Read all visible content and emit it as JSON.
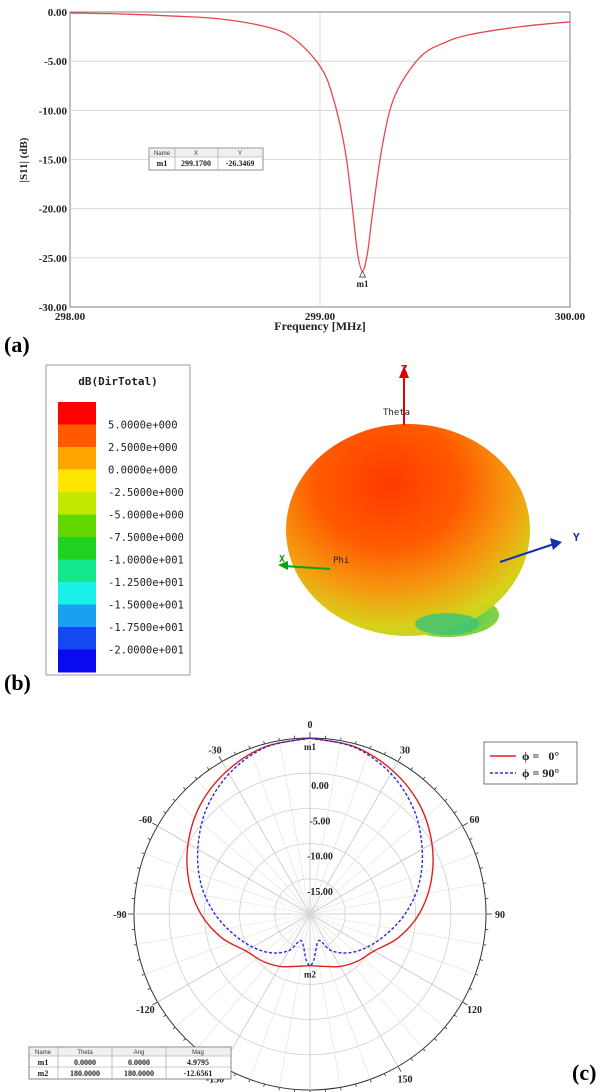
{
  "panel_labels": {
    "a": "(a)",
    "b": "(b)",
    "c": "(c)"
  },
  "chart_data": [
    {
      "type": "line",
      "panel": "a",
      "xlabel": "Frequency [MHz]",
      "ylabel": "|S11| (dB)",
      "xlim": [
        298.0,
        300.0
      ],
      "ylim": [
        -30.0,
        0.0
      ],
      "xticks": [
        "298.00",
        "299.00",
        "300.00"
      ],
      "yticks": [
        "0.00",
        "-5.00",
        "-10.00",
        "-15.00",
        "-20.00",
        "-25.00",
        "-30.00"
      ],
      "grid": true,
      "series": [
        {
          "color": "#e8474f",
          "x": [
            298.0,
            298.2,
            298.4,
            298.6,
            298.8,
            298.9,
            299.0,
            299.05,
            299.1,
            299.13,
            299.15,
            299.17,
            299.19,
            299.21,
            299.25,
            299.3,
            299.4,
            299.5,
            299.6,
            299.8,
            300.0
          ],
          "y": [
            -0.1,
            -0.2,
            -0.4,
            -0.7,
            -1.6,
            -2.8,
            -5.5,
            -8.5,
            -14.0,
            -20.0,
            -24.5,
            -26.35,
            -24.5,
            -20.5,
            -13.5,
            -8.5,
            -4.6,
            -3.1,
            -2.3,
            -1.5,
            -1.0
          ]
        }
      ],
      "marker": {
        "name": "m1",
        "x": 299.17,
        "y": -26.3469
      },
      "marker_table": {
        "headers": [
          "Name",
          "X",
          "Y"
        ],
        "rows": [
          [
            "m1",
            "299.1700",
            "-26.3469"
          ]
        ]
      }
    },
    {
      "type": "heatmap",
      "panel": "b",
      "legend_title": "dB(DirTotal)",
      "legend_levels": [
        "5.0000e+000",
        "2.5000e+000",
        "0.0000e+000",
        "-2.5000e+000",
        "-5.0000e+000",
        "-7.5000e+000",
        "-1.0000e+001",
        "-1.2500e+001",
        "-1.5000e+001",
        "-1.7500e+001",
        "-2.0000e+001"
      ],
      "legend_colors": [
        "#ff0000",
        "#ff5a00",
        "#ffa500",
        "#ffe600",
        "#c0e800",
        "#62d800",
        "#1fd21f",
        "#14e68c",
        "#19f0e6",
        "#1aa0f0",
        "#1448f0",
        "#0a0af0"
      ],
      "axis_labels": {
        "z": "Z",
        "y": "Y",
        "x": "X",
        "theta": "Theta",
        "phi": "Phi"
      }
    },
    {
      "type": "line",
      "panel": "c",
      "polar": true,
      "angle_labels": {
        "0": "0",
        "30": "30",
        "60": "60",
        "90": "90",
        "120": "120",
        "150": "150",
        "180": "-180",
        "-30": "-30",
        "-60": "-60",
        "-90": "-90",
        "-120": "-120",
        "-150": "-150"
      },
      "radial_labels": [
        "0.00",
        "-5.00",
        "-10.00",
        "-15.00"
      ],
      "rlim": [
        -20,
        5
      ],
      "series": [
        {
          "name": "ϕ =   0°",
          "color": "#e02020",
          "dash": false,
          "theta": [
            0,
            15,
            30,
            45,
            60,
            75,
            90,
            105,
            120,
            135,
            150,
            165,
            180
          ],
          "r_db": [
            4.98,
            4.6,
            3.5,
            2.0,
            0.0,
            -2.2,
            -4.5,
            -7.0,
            -9.5,
            -10.5,
            -11.4,
            -12.3,
            -12.66
          ]
        },
        {
          "name": "ϕ = 90°",
          "color": "#2a2ae0",
          "dash": true,
          "theta": [
            0,
            15,
            30,
            45,
            60,
            75,
            90,
            105,
            120,
            135,
            150,
            160,
            170,
            175,
            180
          ],
          "r_db": [
            4.98,
            4.5,
            3.0,
            0.9,
            -1.6,
            -4.0,
            -6.5,
            -8.8,
            -10.6,
            -12.2,
            -14.0,
            -16.0,
            -15.0,
            -13.5,
            -12.66
          ]
        }
      ],
      "marker_labels": {
        "m1": "m1",
        "m2": "m2"
      },
      "marker_table": {
        "headers": [
          "Name",
          "Theta",
          "Ang",
          "Mag"
        ],
        "rows": [
          [
            "m1",
            "0.0000",
            "0.0000",
            "4.9795"
          ],
          [
            "m2",
            "180.0000",
            "180.0000",
            "-12.6561"
          ]
        ]
      }
    }
  ]
}
